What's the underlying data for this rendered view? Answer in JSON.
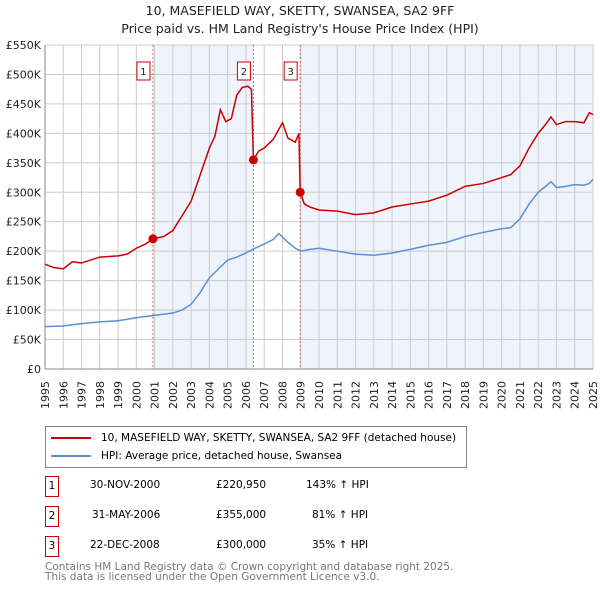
{
  "title": "10, MASEFIELD WAY, SKETTY, SWANSEA, SA2 9FF",
  "subtitle": "Price paid vs. HM Land Registry's House Price Index (HPI)",
  "chart_data": {
    "type": "line",
    "title": "10, MASEFIELD WAY, SKETTY, SWANSEA, SA2 9FF",
    "subtitle": "Price paid vs. HM Land Registry's House Price Index (HPI)",
    "xlim": [
      1995,
      2025
    ],
    "ylim": [
      0,
      550000
    ],
    "yticks": [
      0,
      50000,
      100000,
      150000,
      200000,
      250000,
      300000,
      350000,
      400000,
      450000,
      500000,
      550000
    ],
    "ytick_labels": [
      "£0",
      "£50K",
      "£100K",
      "£150K",
      "£200K",
      "£250K",
      "£300K",
      "£350K",
      "£400K",
      "£450K",
      "£500K",
      "£550K"
    ],
    "xticks": [
      "1995",
      "1996",
      "1997",
      "1998",
      "1999",
      "2000",
      "2001",
      "2002",
      "2003",
      "2004",
      "2005",
      "2006",
      "2007",
      "2008",
      "2009",
      "2010",
      "2011",
      "2012",
      "2013",
      "2014",
      "2015",
      "2016",
      "2017",
      "2018",
      "2019",
      "2020",
      "2021",
      "2022",
      "2023",
      "2024",
      "2025"
    ],
    "grid": true,
    "series": [
      {
        "name": "10, MASEFIELD WAY, SKETTY, SWANSEA, SA2 9FF (detached house)",
        "color": "#cc0000",
        "x": [
          1995,
          1995.5,
          1996,
          1996.5,
          1997,
          1998,
          1999,
          1999.5,
          2000,
          2000.5,
          2000.91,
          2001.5,
          2002,
          2002.5,
          2003,
          2003.5,
          2004,
          2004.3,
          2004.6,
          2004.9,
          2005.2,
          2005.5,
          2005.8,
          2006.1,
          2006.3,
          2006.41,
          2006.7,
          2007,
          2007.5,
          2008,
          2008.3,
          2008.7,
          2008.9,
          2008.97,
          2009.2,
          2009.5,
          2010,
          2011,
          2012,
          2013,
          2014,
          2015,
          2016,
          2017,
          2018,
          2019,
          2020,
          2020.5,
          2021,
          2021.5,
          2022,
          2022.4,
          2022.7,
          2023,
          2023.5,
          2024,
          2024.5,
          2024.8,
          2025
        ],
        "values": [
          178000,
          172000,
          170000,
          182000,
          180000,
          190000,
          192000,
          195000,
          205000,
          212000,
          220950,
          225000,
          235000,
          260000,
          285000,
          330000,
          375000,
          395000,
          440000,
          420000,
          425000,
          465000,
          478000,
          480000,
          475000,
          355000,
          370000,
          375000,
          390000,
          418000,
          392000,
          385000,
          400000,
          300000,
          280000,
          275000,
          270000,
          268000,
          262000,
          265000,
          275000,
          280000,
          285000,
          295000,
          310000,
          315000,
          325000,
          330000,
          345000,
          375000,
          400000,
          415000,
          428000,
          415000,
          420000,
          420000,
          418000,
          435000,
          432000
        ]
      },
      {
        "name": "HPI: Average price, detached house, Swansea",
        "color": "#5b8fd4",
        "x": [
          1995,
          1996,
          1997,
          1998,
          1999,
          2000,
          2001,
          2002,
          2002.5,
          2003,
          2003.5,
          2004,
          2004.5,
          2005,
          2005.5,
          2006,
          2006.5,
          2007,
          2007.5,
          2007.8,
          2008.3,
          2008.7,
          2009,
          2009.5,
          2010,
          2011,
          2012,
          2013,
          2014,
          2015,
          2016,
          2017,
          2018,
          2019,
          2020,
          2020.5,
          2021,
          2021.5,
          2022,
          2022.4,
          2022.7,
          2023,
          2023.5,
          2024,
          2024.5,
          2024.8,
          2025
        ],
        "values": [
          72000,
          73000,
          77000,
          80000,
          82000,
          87000,
          91000,
          95000,
          100000,
          110000,
          130000,
          155000,
          170000,
          185000,
          190000,
          197000,
          205000,
          212000,
          220000,
          230000,
          215000,
          205000,
          200000,
          203000,
          205000,
          200000,
          195000,
          193000,
          197000,
          203000,
          210000,
          215000,
          225000,
          232000,
          238000,
          240000,
          255000,
          280000,
          300000,
          310000,
          318000,
          308000,
          310000,
          313000,
          312000,
          315000,
          322000
        ]
      }
    ],
    "annotations": [
      {
        "label": "1",
        "x": 2000.91,
        "y": 220950
      },
      {
        "label": "2",
        "x": 2006.41,
        "y": 355000
      },
      {
        "label": "3",
        "x": 2008.97,
        "y": 300000
      }
    ]
  },
  "legend": [
    {
      "label": "10, MASEFIELD WAY, SKETTY, SWANSEA, SA2 9FF (detached house)",
      "color": "#cc0000"
    },
    {
      "label": "HPI: Average price, detached house, Swansea",
      "color": "#5b8fd4"
    }
  ],
  "sales": [
    {
      "num": "1",
      "date": "30-NOV-2000",
      "price": "£220,950",
      "hpi": "143% ↑ HPI"
    },
    {
      "num": "2",
      "date": "31-MAY-2006",
      "price": "£355,000",
      "hpi": "81% ↑ HPI"
    },
    {
      "num": "3",
      "date": "22-DEC-2008",
      "price": "£300,000",
      "hpi": "35% ↑ HPI"
    }
  ],
  "footer": [
    "Contains HM Land Registry data © Crown copyright and database right 2025.",
    "This data is licensed under the Open Government Licence v3.0."
  ]
}
